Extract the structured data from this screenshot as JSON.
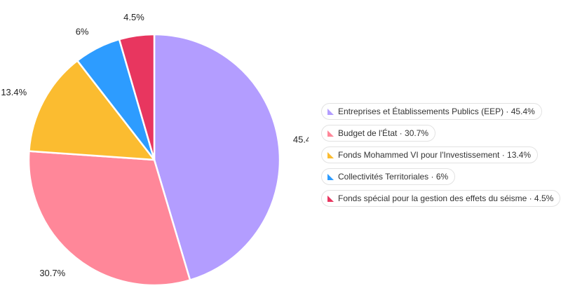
{
  "chart_data": {
    "type": "pie",
    "title": "",
    "legend_position": "right",
    "slices": [
      {
        "name": "Entreprises et Établissements Publics (EEP)",
        "value": 45.4,
        "label": "45.4%",
        "color": "#b39dff"
      },
      {
        "name": "Budget de l'État",
        "value": 30.7,
        "label": "30.7%",
        "color": "#ff8799"
      },
      {
        "name": "Fonds Mohammed VI pour l'Investissement",
        "value": 13.4,
        "label": "13.4%",
        "color": "#fbbc30"
      },
      {
        "name": "Collectivités Territoriales",
        "value": 6,
        "label": "6%",
        "color": "#2d9cff"
      },
      {
        "name": "Fonds spécial pour la gestion des effets du séisme",
        "value": 4.5,
        "label": "4.5%",
        "color": "#e8365f"
      }
    ]
  },
  "legend": {
    "items": [
      "Entreprises et Établissements Publics (EEP) · 45.4%",
      "Budget de l'État · 30.7%",
      "Fonds Mohammed VI pour l'Investissement · 13.4%",
      "Collectivités Territoriales · 6%",
      "Fonds spécial pour la gestion des effets du séisme · 4.5%"
    ]
  }
}
